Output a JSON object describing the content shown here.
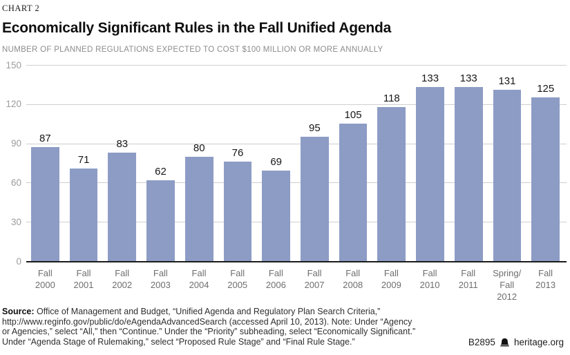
{
  "page": {
    "kicker": "CHART 2",
    "title": "Economically Significant Rules in the Fall Unified Agenda",
    "subtitle": "NUMBER OF PLANNED REGULATIONS EXPECTED TO COST $100 MILLION OR MORE ANNUALLY"
  },
  "chart_data": {
    "type": "bar",
    "title": "Economically Significant Rules in the Fall Unified Agenda",
    "subtitle": "NUMBER OF PLANNED REGULATIONS EXPECTED TO COST $100 MILLION OR MORE ANNUALLY",
    "categories": [
      [
        "Fall",
        "2000"
      ],
      [
        "Fall",
        "2001"
      ],
      [
        "Fall",
        "2002"
      ],
      [
        "Fall",
        "2003"
      ],
      [
        "Fall",
        "2004"
      ],
      [
        "Fall",
        "2005"
      ],
      [
        "Fall",
        "2006"
      ],
      [
        "Fall",
        "2007"
      ],
      [
        "Fall",
        "2008"
      ],
      [
        "Fall",
        "2009"
      ],
      [
        "Fall",
        "2010"
      ],
      [
        "Fall",
        "2011"
      ],
      [
        "Spring/",
        "Fall",
        "2012"
      ],
      [
        "Fall",
        "2013"
      ]
    ],
    "values": [
      87,
      71,
      83,
      62,
      80,
      76,
      69,
      95,
      105,
      118,
      133,
      133,
      131,
      125
    ],
    "xlabel": "",
    "ylabel": "",
    "ylim": [
      0,
      150
    ],
    "yticks": [
      0,
      30,
      60,
      90,
      120,
      150
    ],
    "grid": true,
    "legend_position": "none",
    "bar_color": "#8d9cc5",
    "gridline_color": "#cfcfcf",
    "baseline_color": "#1a1a1a"
  },
  "footer": {
    "source_label": "Source:",
    "source_text": " Office of Management and Budget, “Unified Agenda and Regulatory Plan Search Criteria,” http://www.reginfo.gov/public/do/eAgendaAdvancedSearch (accessed April 10, 2013). Note: Under “Agency or Agencies,” select “All,” then “Continue.” Under the “Priority” subheading, select “Economically Significant.” Under “Agenda Stage of Rulemaking,” select “Proposed Rule Stage” and “Final Rule Stage.”",
    "report_id": "B2895",
    "site": "heritage.org"
  }
}
